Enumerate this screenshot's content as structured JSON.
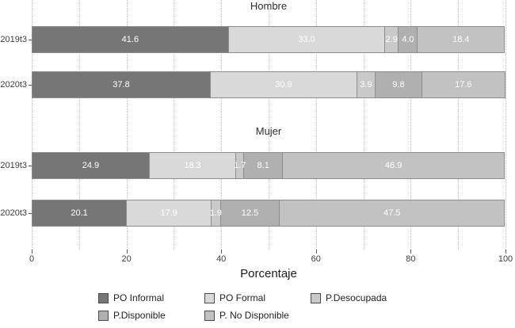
{
  "chart_data": {
    "type": "bar",
    "orientation": "horizontal",
    "stacked": true,
    "xlabel": "Porcentaje",
    "xlim": [
      0,
      100
    ],
    "xticks": [
      0,
      20,
      40,
      60,
      80,
      100
    ],
    "gridlines": [
      0,
      10,
      20,
      30,
      40,
      50,
      60,
      70,
      80,
      90,
      100
    ],
    "series": [
      "PO Informal",
      "PO Formal",
      "P.Desocupada",
      "P.Disponible",
      "P. No Disponible"
    ],
    "colors": [
      "#767676",
      "#d9d9d9",
      "#c9c9c9",
      "#b0b0b0",
      "#c2c2c2"
    ],
    "panels": [
      {
        "title": "Hombre",
        "rows": [
          {
            "label": "2019t3",
            "values": [
              41.6,
              33.0,
              2.9,
              4.0,
              18.4
            ]
          },
          {
            "label": "2020t3",
            "values": [
              37.8,
              30.9,
              3.9,
              9.8,
              17.6
            ]
          }
        ]
      },
      {
        "title": "Mujer",
        "rows": [
          {
            "label": "2019t3",
            "values": [
              24.9,
              18.3,
              1.7,
              8.1,
              46.9
            ]
          },
          {
            "label": "2020t3",
            "values": [
              20.1,
              17.9,
              1.9,
              12.5,
              47.5
            ]
          }
        ]
      }
    ],
    "legend_position": "bottom"
  }
}
